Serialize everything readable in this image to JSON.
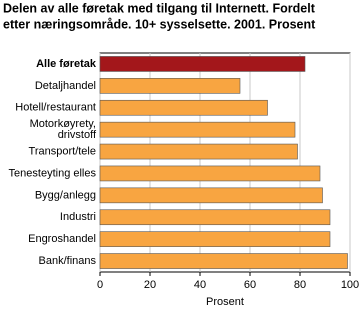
{
  "chart_data": {
    "type": "barh",
    "title": [
      "Delen av alle føretak med tilgang til Internett. Fordelt",
      "etter næringsområde. 10+ sysselsette. 2001. Prosent"
    ],
    "categories": [
      "Alle føretak",
      "Detaljhandel",
      "Hotell/restaurant",
      "Motorkøyrety, drivstoff",
      "Transport/tele",
      "Tenesteyting elles",
      "Bygg/anlegg",
      "Industri",
      "Engroshandel",
      "Bank/finans"
    ],
    "values": [
      82,
      56,
      67,
      78,
      79,
      88,
      89,
      92,
      92,
      99
    ],
    "colors": [
      "#a3171b",
      "#f8a541",
      "#f8a541",
      "#f8a541",
      "#f8a541",
      "#f8a541",
      "#f8a541",
      "#f8a541",
      "#f8a541",
      "#f8a541"
    ],
    "xlabel": "Prosent",
    "xlim": [
      0,
      100
    ],
    "xticks": [
      0,
      20,
      40,
      60,
      80,
      100
    ],
    "grid": true
  }
}
